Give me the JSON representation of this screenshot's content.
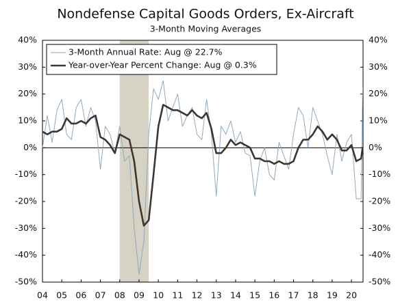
{
  "chart_data": {
    "type": "line",
    "title": "Nondefense Capital Goods Orders, Ex-Aircraft",
    "subtitle": "3-Month Moving Averages",
    "x": [
      2004,
      2004.25,
      2004.5,
      2004.75,
      2005,
      2005.25,
      2005.5,
      2005.75,
      2006,
      2006.25,
      2006.5,
      2006.75,
      2007,
      2007.25,
      2007.5,
      2007.75,
      2008,
      2008.25,
      2008.5,
      2008.75,
      2009,
      2009.25,
      2009.5,
      2009.75,
      2010,
      2010.25,
      2010.5,
      2010.75,
      2011,
      2011.25,
      2011.5,
      2011.75,
      2012,
      2012.25,
      2012.5,
      2012.75,
      2013,
      2013.25,
      2013.5,
      2013.75,
      2014,
      2014.25,
      2014.5,
      2014.75,
      2015,
      2015.25,
      2015.5,
      2015.75,
      2016,
      2016.25,
      2016.5,
      2016.75,
      2017,
      2017.25,
      2017.5,
      2017.75,
      2018,
      2018.25,
      2018.5,
      2018.75,
      2019,
      2019.25,
      2019.5,
      2019.75,
      2020,
      2020.25,
      2020.5,
      2020.583
    ],
    "series": [
      {
        "name": "3-Month Annual Rate: Aug @ 22.7%",
        "color": "#8fa9bf",
        "width": 1,
        "values": [
          0,
          12,
          2,
          14,
          18,
          5,
          3,
          15,
          18,
          8,
          15,
          10,
          -8,
          8,
          5,
          -2,
          8,
          -5,
          -3,
          -30,
          -47,
          -35,
          5,
          22,
          18,
          25,
          10,
          15,
          20,
          8,
          12,
          15,
          5,
          3,
          18,
          5,
          -18,
          8,
          5,
          10,
          2,
          6,
          -2,
          -3,
          -18,
          -5,
          0,
          -10,
          -12,
          2,
          -3,
          -8,
          5,
          15,
          12,
          0,
          15,
          10,
          5,
          -3,
          -10,
          5,
          -5,
          2,
          5,
          -19,
          -19,
          22.7
        ]
      },
      {
        "name": "Year-over-Year Percent Change: Aug @ 0.3%",
        "color": "#3d3530",
        "width": 2.6,
        "values": [
          6,
          5,
          6,
          6,
          7,
          11,
          9,
          9,
          10,
          9,
          11,
          12,
          4,
          3,
          1,
          -2,
          5,
          4,
          3,
          -5,
          -20,
          -29,
          -27,
          -10,
          8,
          16,
          15,
          14,
          14,
          13,
          12,
          14,
          12,
          11,
          13,
          7,
          -2,
          -2,
          0,
          3,
          1,
          2,
          1,
          0,
          -4,
          -4,
          -5,
          -5,
          -6,
          -5,
          -6,
          -6,
          -5,
          0,
          3,
          3,
          5,
          8,
          6,
          3,
          5,
          3,
          -1,
          -1,
          1,
          -5,
          -4,
          0.3
        ]
      }
    ],
    "shade": [
      2008,
      2009.5
    ],
    "shade_color": "#d6d2c4",
    "xlim": [
      2004,
      2020.6
    ],
    "xticks": [
      {
        "value": 2004,
        "label": "04"
      },
      {
        "value": 2005,
        "label": "05"
      },
      {
        "value": 2006,
        "label": "06"
      },
      {
        "value": 2007,
        "label": "07"
      },
      {
        "value": 2008,
        "label": "08"
      },
      {
        "value": 2009,
        "label": "09"
      },
      {
        "value": 2010,
        "label": "10"
      },
      {
        "value": 2011,
        "label": "11"
      },
      {
        "value": 2012,
        "label": "12"
      },
      {
        "value": 2013,
        "label": "13"
      },
      {
        "value": 2014,
        "label": "14"
      },
      {
        "value": 2015,
        "label": "15"
      },
      {
        "value": 2016,
        "label": "16"
      },
      {
        "value": 2017,
        "label": "17"
      },
      {
        "value": 2018,
        "label": "18"
      },
      {
        "value": 2019,
        "label": "19"
      },
      {
        "value": 2020,
        "label": "20"
      }
    ],
    "ylim": [
      -50,
      40
    ],
    "yticks": [
      {
        "value": -50,
        "label": "-50%"
      },
      {
        "value": -40,
        "label": "-40%"
      },
      {
        "value": -30,
        "label": "-30%"
      },
      {
        "value": -20,
        "label": "-20%"
      },
      {
        "value": -10,
        "label": "-10%"
      },
      {
        "value": 0,
        "label": "0%"
      },
      {
        "value": 10,
        "label": "10%"
      },
      {
        "value": 20,
        "label": "20%"
      },
      {
        "value": 30,
        "label": "30%"
      },
      {
        "value": 40,
        "label": "40%"
      }
    ],
    "y2lim": [
      -50,
      40
    ],
    "y2ticks": [
      {
        "value": -50,
        "label": "-50%"
      },
      {
        "value": -40,
        "label": "-40%"
      },
      {
        "value": -30,
        "label": "-30%"
      },
      {
        "value": -20,
        "label": "-20%"
      },
      {
        "value": -10,
        "label": "-10%"
      },
      {
        "value": 0,
        "label": "0%"
      },
      {
        "value": 10,
        "label": "10%"
      },
      {
        "value": 20,
        "label": "20%"
      },
      {
        "value": 30,
        "label": "30%"
      },
      {
        "value": 40,
        "label": "40%"
      }
    ],
    "legend": "upper left",
    "grid": false
  }
}
